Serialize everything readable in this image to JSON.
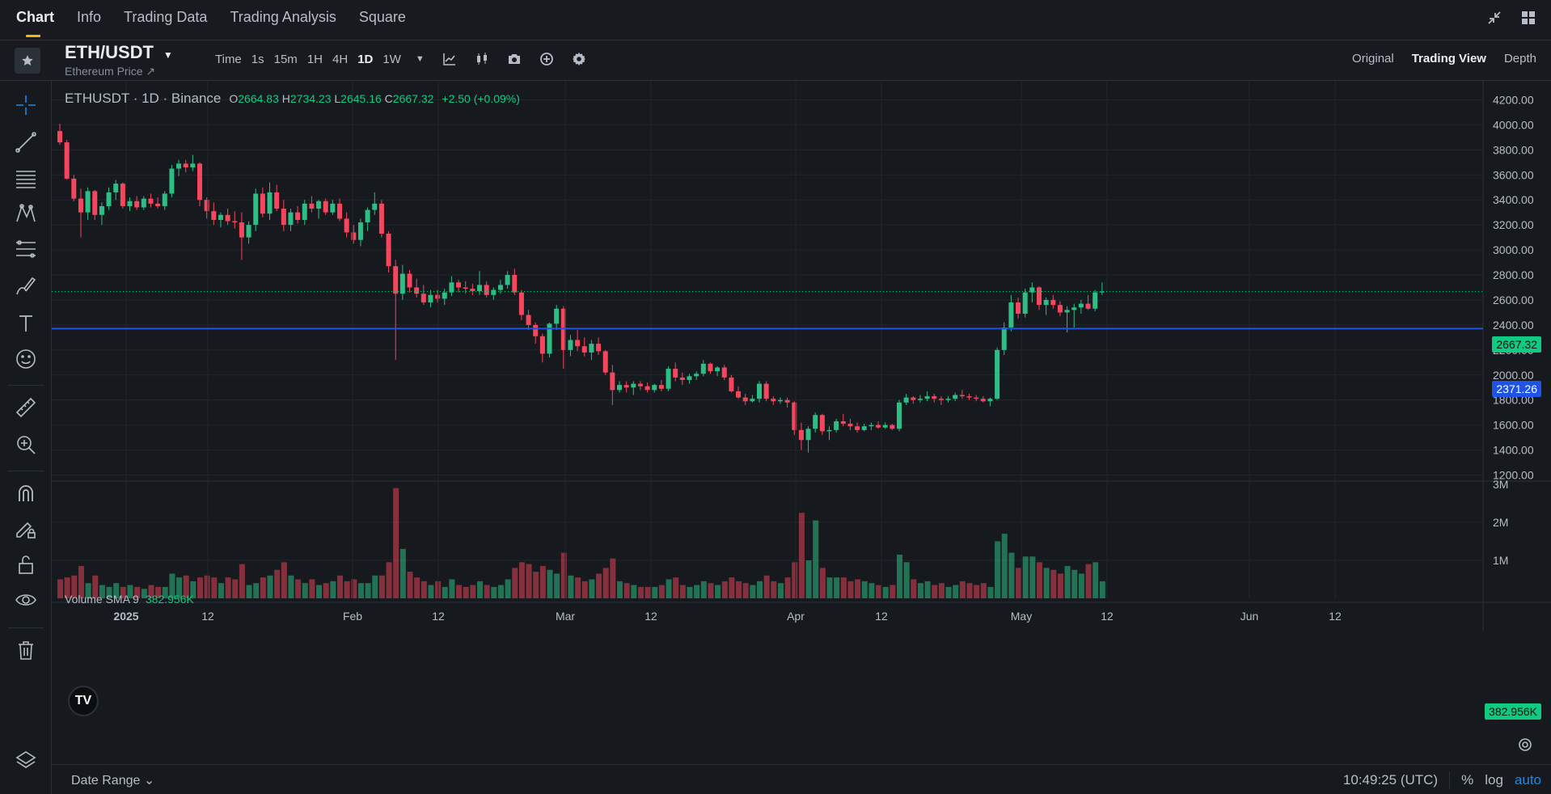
{
  "tabs": [
    {
      "label": "Chart",
      "active": true
    },
    {
      "label": "Info"
    },
    {
      "label": "Trading Data"
    },
    {
      "label": "Trading Analysis"
    },
    {
      "label": "Square"
    }
  ],
  "symbol": {
    "name": "ETH/USDT",
    "subtitle": "Ethereum Price ↗"
  },
  "intervals": [
    {
      "label": "Time"
    },
    {
      "label": "1s"
    },
    {
      "label": "15m"
    },
    {
      "label": "1H"
    },
    {
      "label": "4H"
    },
    {
      "label": "1D",
      "active": true
    },
    {
      "label": "1W"
    }
  ],
  "views": [
    {
      "label": "Original"
    },
    {
      "label": "Trading View",
      "active": true
    },
    {
      "label": "Depth"
    }
  ],
  "legend": {
    "symbol": "ETHUSDT · 1D · Binance",
    "open_label": "O",
    "open": "2664.83",
    "high_label": "H",
    "high": "2734.23",
    "low_label": "L",
    "low": "2645.16",
    "close_label": "C",
    "close": "2667.32",
    "change": "+2.50 (+0.09%)"
  },
  "volume": {
    "label": "Volume SMA 9",
    "value": "382.956K",
    "tag": "382.956K"
  },
  "price_tags": {
    "last": "2667.32",
    "line": "2371.26"
  },
  "colors": {
    "up": "#2ebd85",
    "down": "#f6465d",
    "line": "#1e53e5",
    "bg": "#161a1e",
    "accent": "#f0b90b"
  },
  "chart_data": {
    "type": "candlestick",
    "price_axis": [
      "4200.00",
      "4000.00",
      "3800.00",
      "3600.00",
      "3400.00",
      "3200.00",
      "3000.00",
      "2800.00",
      "2600.00",
      "2400.00",
      "2200.00",
      "2000.00",
      "1800.00",
      "1600.00",
      "1400.00",
      "1200.00"
    ],
    "volume_axis": [
      "3M",
      "2M",
      "1M"
    ],
    "time_axis": [
      "2025",
      "12",
      "Feb",
      "12",
      "Mar",
      "12",
      "Apr",
      "12",
      "May",
      "12",
      "Jun",
      "12"
    ],
    "price_range": [
      1100,
      4300
    ],
    "horizontal_line": 2371.26,
    "candles": [
      [
        3950,
        4010,
        3840,
        3860,
        0.5
      ],
      [
        3860,
        3880,
        3560,
        3570,
        0.55
      ],
      [
        3570,
        3600,
        3390,
        3410,
        0.6
      ],
      [
        3410,
        3490,
        3100,
        3300,
        0.85
      ],
      [
        3300,
        3500,
        3240,
        3470,
        0.4
      ],
      [
        3470,
        3480,
        3240,
        3280,
        0.6
      ],
      [
        3280,
        3380,
        3200,
        3350,
        0.35
      ],
      [
        3350,
        3500,
        3320,
        3460,
        0.3
      ],
      [
        3460,
        3560,
        3400,
        3530,
        0.4
      ],
      [
        3530,
        3540,
        3330,
        3350,
        0.3
      ],
      [
        3350,
        3420,
        3310,
        3390,
        0.35
      ],
      [
        3390,
        3430,
        3320,
        3340,
        0.3
      ],
      [
        3340,
        3430,
        3320,
        3410,
        0.25
      ],
      [
        3410,
        3450,
        3340,
        3370,
        0.35
      ],
      [
        3370,
        3420,
        3330,
        3350,
        0.3
      ],
      [
        3350,
        3470,
        3320,
        3450,
        0.3
      ],
      [
        3450,
        3680,
        3420,
        3650,
        0.65
      ],
      [
        3650,
        3720,
        3590,
        3690,
        0.55
      ],
      [
        3690,
        3720,
        3620,
        3660,
        0.6
      ],
      [
        3660,
        3760,
        3630,
        3690,
        0.45
      ],
      [
        3690,
        3700,
        3350,
        3400,
        0.55
      ],
      [
        3400,
        3420,
        3250,
        3310,
        0.6
      ],
      [
        3310,
        3380,
        3200,
        3240,
        0.55
      ],
      [
        3240,
        3300,
        3180,
        3280,
        0.4
      ],
      [
        3280,
        3330,
        3200,
        3230,
        0.55
      ],
      [
        3230,
        3310,
        3170,
        3220,
        0.5
      ],
      [
        3220,
        3300,
        2920,
        3100,
        0.9
      ],
      [
        3100,
        3230,
        3050,
        3200,
        0.35
      ],
      [
        3200,
        3490,
        3150,
        3450,
        0.4
      ],
      [
        3450,
        3500,
        3260,
        3290,
        0.55
      ],
      [
        3290,
        3540,
        3240,
        3460,
        0.6
      ],
      [
        3460,
        3520,
        3310,
        3330,
        0.75
      ],
      [
        3330,
        3400,
        3150,
        3200,
        0.95
      ],
      [
        3200,
        3330,
        3150,
        3300,
        0.6
      ],
      [
        3300,
        3350,
        3210,
        3240,
        0.5
      ],
      [
        3240,
        3400,
        3200,
        3370,
        0.4
      ],
      [
        3370,
        3430,
        3300,
        3330,
        0.5
      ],
      [
        3330,
        3400,
        3250,
        3390,
        0.35
      ],
      [
        3390,
        3410,
        3280,
        3300,
        0.4
      ],
      [
        3300,
        3400,
        3280,
        3370,
        0.45
      ],
      [
        3370,
        3410,
        3230,
        3250,
        0.6
      ],
      [
        3250,
        3300,
        3100,
        3140,
        0.45
      ],
      [
        3140,
        3200,
        3050,
        3080,
        0.5
      ],
      [
        3080,
        3250,
        3030,
        3220,
        0.4
      ],
      [
        3220,
        3340,
        3150,
        3320,
        0.4
      ],
      [
        3320,
        3460,
        3280,
        3370,
        0.6
      ],
      [
        3370,
        3400,
        3100,
        3130,
        0.6
      ],
      [
        3130,
        3150,
        2820,
        2870,
        0.95
      ],
      [
        2870,
        2920,
        2120,
        2650,
        2.9
      ],
      [
        2650,
        2880,
        2600,
        2810,
        1.3
      ],
      [
        2810,
        2840,
        2660,
        2700,
        0.7
      ],
      [
        2700,
        2770,
        2620,
        2650,
        0.55
      ],
      [
        2650,
        2720,
        2560,
        2580,
        0.45
      ],
      [
        2580,
        2680,
        2540,
        2640,
        0.35
      ],
      [
        2640,
        2680,
        2580,
        2610,
        0.45
      ],
      [
        2610,
        2690,
        2560,
        2660,
        0.3
      ],
      [
        2660,
        2790,
        2630,
        2740,
        0.5
      ],
      [
        2740,
        2760,
        2660,
        2700,
        0.35
      ],
      [
        2700,
        2750,
        2650,
        2690,
        0.3
      ],
      [
        2690,
        2730,
        2640,
        2670,
        0.35
      ],
      [
        2670,
        2830,
        2640,
        2720,
        0.45
      ],
      [
        2720,
        2750,
        2620,
        2640,
        0.35
      ],
      [
        2640,
        2700,
        2600,
        2680,
        0.3
      ],
      [
        2680,
        2760,
        2650,
        2720,
        0.35
      ],
      [
        2720,
        2830,
        2690,
        2800,
        0.5
      ],
      [
        2800,
        2850,
        2640,
        2660,
        0.8
      ],
      [
        2660,
        2680,
        2440,
        2480,
        0.95
      ],
      [
        2480,
        2520,
        2360,
        2400,
        0.9
      ],
      [
        2400,
        2420,
        2250,
        2310,
        0.7
      ],
      [
        2310,
        2330,
        2100,
        2170,
        0.85
      ],
      [
        2170,
        2420,
        2140,
        2410,
        0.75
      ],
      [
        2410,
        2560,
        2360,
        2530,
        0.65
      ],
      [
        2530,
        2550,
        2050,
        2200,
        1.2
      ],
      [
        2200,
        2320,
        2150,
        2280,
        0.6
      ],
      [
        2280,
        2360,
        2190,
        2230,
        0.55
      ],
      [
        2230,
        2300,
        2150,
        2180,
        0.45
      ],
      [
        2180,
        2280,
        2120,
        2250,
        0.5
      ],
      [
        2250,
        2300,
        2160,
        2190,
        0.65
      ],
      [
        2190,
        2200,
        2000,
        2020,
        0.8
      ],
      [
        2020,
        2080,
        1760,
        1880,
        1.05
      ],
      [
        1880,
        1950,
        1860,
        1920,
        0.45
      ],
      [
        1920,
        1950,
        1860,
        1900,
        0.4
      ],
      [
        1900,
        1950,
        1840,
        1930,
        0.35
      ],
      [
        1930,
        1950,
        1880,
        1910,
        0.3
      ],
      [
        1910,
        1940,
        1860,
        1880,
        0.3
      ],
      [
        1880,
        1930,
        1860,
        1920,
        0.3
      ],
      [
        1920,
        1960,
        1870,
        1890,
        0.35
      ],
      [
        1890,
        2070,
        1870,
        2050,
        0.5
      ],
      [
        2050,
        2100,
        1950,
        1980,
        0.55
      ],
      [
        1980,
        2020,
        1920,
        1960,
        0.35
      ],
      [
        1960,
        2010,
        1930,
        1990,
        0.3
      ],
      [
        1990,
        2030,
        1960,
        2010,
        0.35
      ],
      [
        2010,
        2120,
        1990,
        2090,
        0.45
      ],
      [
        2090,
        2100,
        2010,
        2030,
        0.4
      ],
      [
        2030,
        2070,
        1990,
        2060,
        0.35
      ],
      [
        2060,
        2080,
        1960,
        1980,
        0.45
      ],
      [
        1980,
        2000,
        1860,
        1870,
        0.55
      ],
      [
        1870,
        1910,
        1810,
        1820,
        0.45
      ],
      [
        1820,
        1850,
        1760,
        1790,
        0.4
      ],
      [
        1790,
        1840,
        1780,
        1810,
        0.35
      ],
      [
        1810,
        1950,
        1780,
        1930,
        0.45
      ],
      [
        1930,
        1950,
        1790,
        1810,
        0.6
      ],
      [
        1810,
        1830,
        1760,
        1790,
        0.45
      ],
      [
        1790,
        1820,
        1770,
        1800,
        0.4
      ],
      [
        1800,
        1820,
        1740,
        1780,
        0.55
      ],
      [
        1780,
        1790,
        1520,
        1560,
        0.95
      ],
      [
        1560,
        1620,
        1400,
        1480,
        2.25
      ],
      [
        1480,
        1590,
        1380,
        1570,
        1.0
      ],
      [
        1570,
        1700,
        1540,
        1680,
        2.05
      ],
      [
        1680,
        1690,
        1520,
        1550,
        0.8
      ],
      [
        1550,
        1590,
        1480,
        1560,
        0.55
      ],
      [
        1560,
        1650,
        1540,
        1630,
        0.55
      ],
      [
        1630,
        1690,
        1590,
        1610,
        0.55
      ],
      [
        1610,
        1650,
        1560,
        1590,
        0.45
      ],
      [
        1590,
        1620,
        1540,
        1560,
        0.5
      ],
      [
        1560,
        1610,
        1550,
        1590,
        0.45
      ],
      [
        1590,
        1620,
        1560,
        1600,
        0.4
      ],
      [
        1600,
        1630,
        1570,
        1580,
        0.35
      ],
      [
        1580,
        1620,
        1570,
        1600,
        0.3
      ],
      [
        1600,
        1610,
        1560,
        1570,
        0.35
      ],
      [
        1570,
        1800,
        1550,
        1780,
        1.15
      ],
      [
        1780,
        1850,
        1760,
        1820,
        0.95
      ],
      [
        1820,
        1830,
        1770,
        1800,
        0.5
      ],
      [
        1800,
        1840,
        1780,
        1810,
        0.4
      ],
      [
        1810,
        1870,
        1790,
        1830,
        0.45
      ],
      [
        1830,
        1850,
        1780,
        1810,
        0.35
      ],
      [
        1810,
        1830,
        1760,
        1800,
        0.4
      ],
      [
        1800,
        1830,
        1780,
        1810,
        0.3
      ],
      [
        1810,
        1860,
        1790,
        1840,
        0.35
      ],
      [
        1840,
        1880,
        1810,
        1830,
        0.45
      ],
      [
        1830,
        1850,
        1800,
        1820,
        0.4
      ],
      [
        1820,
        1840,
        1790,
        1810,
        0.35
      ],
      [
        1810,
        1830,
        1780,
        1790,
        0.4
      ],
      [
        1790,
        1820,
        1750,
        1810,
        0.3
      ],
      [
        1810,
        2220,
        1800,
        2200,
        1.5
      ],
      [
        2200,
        2420,
        2160,
        2380,
        1.7
      ],
      [
        2380,
        2640,
        2350,
        2580,
        1.2
      ],
      [
        2580,
        2620,
        2450,
        2490,
        0.8
      ],
      [
        2490,
        2690,
        2460,
        2660,
        1.1
      ],
      [
        2660,
        2740,
        2580,
        2700,
        1.1
      ],
      [
        2700,
        2710,
        2520,
        2560,
        0.95
      ],
      [
        2560,
        2620,
        2480,
        2600,
        0.8
      ],
      [
        2600,
        2640,
        2530,
        2560,
        0.75
      ],
      [
        2560,
        2590,
        2470,
        2500,
        0.65
      ],
      [
        2500,
        2550,
        2340,
        2520,
        0.85
      ],
      [
        2520,
        2570,
        2380,
        2540,
        0.75
      ],
      [
        2540,
        2600,
        2490,
        2570,
        0.65
      ],
      [
        2570,
        2640,
        2520,
        2530,
        0.9
      ],
      [
        2530,
        2680,
        2510,
        2660,
        0.95
      ],
      [
        2660,
        2740,
        2640,
        2667,
        0.45
      ]
    ]
  }
}
